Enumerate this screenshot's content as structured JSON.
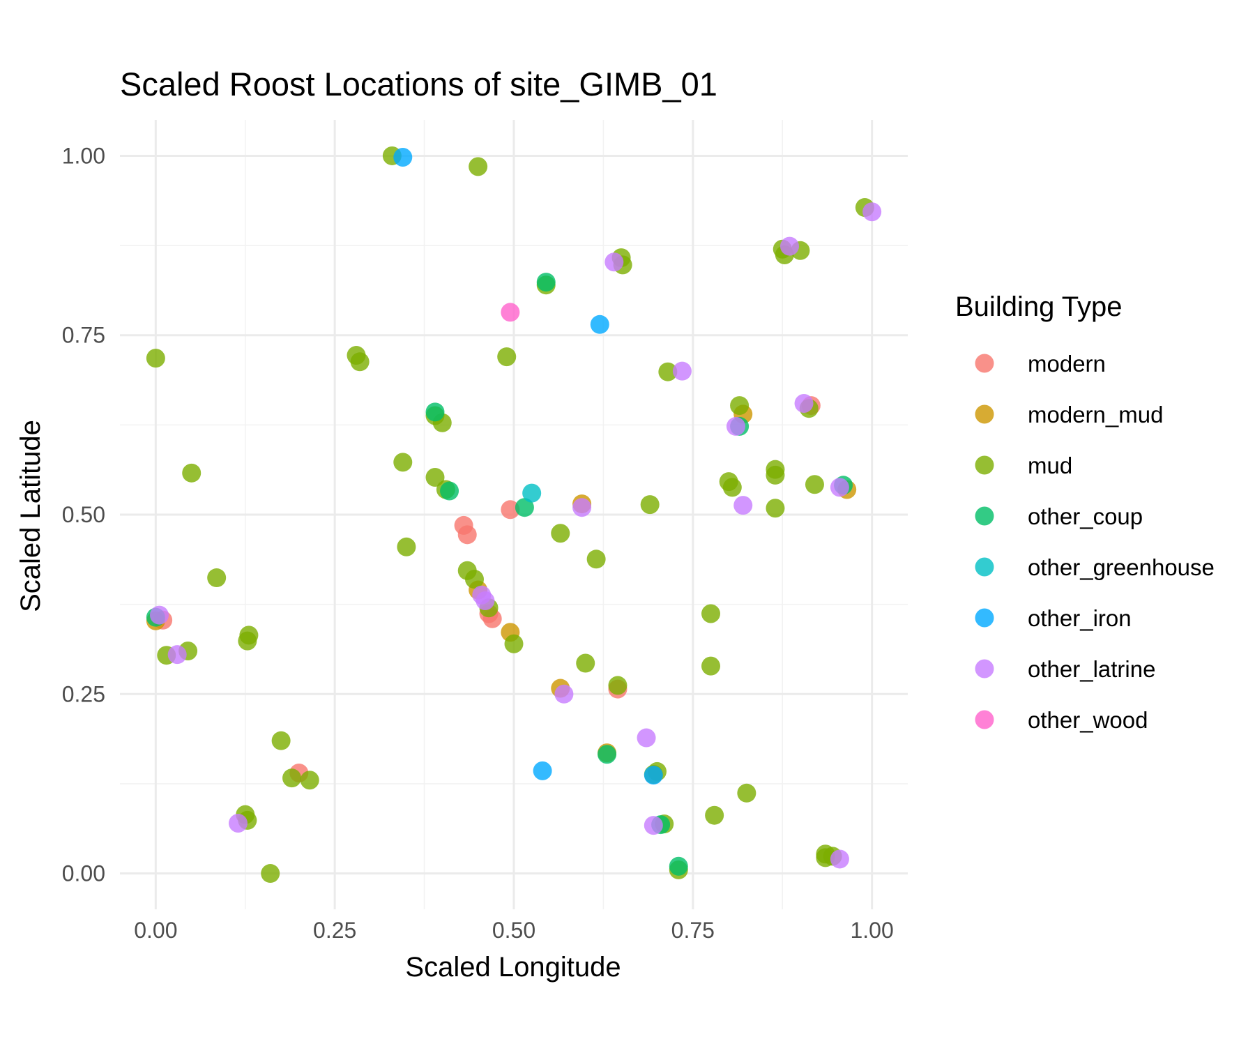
{
  "chart_data": {
    "type": "scatter",
    "title": "Scaled Roost Locations of site_GIMB_01",
    "xlabel": "Scaled Longitude",
    "ylabel": "Scaled Latitude",
    "xlim": [
      -0.05,
      1.05
    ],
    "ylim": [
      -0.05,
      1.05
    ],
    "x_ticks": [
      "0.00",
      "0.25",
      "0.50",
      "0.75",
      "1.00"
    ],
    "y_ticks": [
      "0.00",
      "0.25",
      "0.50",
      "0.75",
      "1.00"
    ],
    "grid": true,
    "legend": {
      "title": "Building Type",
      "position": "right"
    },
    "series": [
      {
        "name": "modern",
        "color": "#F8766D",
        "points": [
          [
            0.01,
            0.353
          ],
          [
            0.2,
            0.14
          ],
          [
            0.43,
            0.485
          ],
          [
            0.435,
            0.472
          ],
          [
            0.465,
            0.362
          ],
          [
            0.47,
            0.355
          ],
          [
            0.495,
            0.507
          ],
          [
            0.645,
            0.257
          ],
          [
            0.915,
            0.652
          ]
        ]
      },
      {
        "name": "modern_mud",
        "color": "#CD9600",
        "points": [
          [
            0.0,
            0.352
          ],
          [
            0.45,
            0.395
          ],
          [
            0.495,
            0.336
          ],
          [
            0.565,
            0.258
          ],
          [
            0.595,
            0.515
          ],
          [
            0.63,
            0.168
          ],
          [
            0.82,
            0.64
          ],
          [
            0.965,
            0.535
          ]
        ]
      },
      {
        "name": "mud",
        "color": "#7CAE00",
        "points": [
          [
            0.0,
            0.718
          ],
          [
            0.05,
            0.558
          ],
          [
            0.015,
            0.304
          ],
          [
            0.045,
            0.31
          ],
          [
            0.085,
            0.412
          ],
          [
            0.13,
            0.332
          ],
          [
            0.128,
            0.324
          ],
          [
            0.125,
            0.082
          ],
          [
            0.128,
            0.074
          ],
          [
            0.16,
            0.0
          ],
          [
            0.175,
            0.185
          ],
          [
            0.19,
            0.133
          ],
          [
            0.215,
            0.13
          ],
          [
            0.28,
            0.722
          ],
          [
            0.285,
            0.713
          ],
          [
            0.33,
            1.0
          ],
          [
            0.345,
            0.573
          ],
          [
            0.35,
            0.455
          ],
          [
            0.39,
            0.552
          ],
          [
            0.39,
            0.638
          ],
          [
            0.4,
            0.628
          ],
          [
            0.405,
            0.535
          ],
          [
            0.435,
            0.422
          ],
          [
            0.445,
            0.41
          ],
          [
            0.45,
            0.985
          ],
          [
            0.465,
            0.37
          ],
          [
            0.49,
            0.72
          ],
          [
            0.5,
            0.32
          ],
          [
            0.545,
            0.82
          ],
          [
            0.565,
            0.474
          ],
          [
            0.6,
            0.293
          ],
          [
            0.615,
            0.438
          ],
          [
            0.645,
            0.262
          ],
          [
            0.65,
            0.858
          ],
          [
            0.652,
            0.848
          ],
          [
            0.69,
            0.514
          ],
          [
            0.7,
            0.142
          ],
          [
            0.695,
            0.138
          ],
          [
            0.71,
            0.069
          ],
          [
            0.715,
            0.699
          ],
          [
            0.73,
            0.005
          ],
          [
            0.775,
            0.362
          ],
          [
            0.775,
            0.289
          ],
          [
            0.78,
            0.081
          ],
          [
            0.8,
            0.546
          ],
          [
            0.805,
            0.538
          ],
          [
            0.815,
            0.652
          ],
          [
            0.825,
            0.112
          ],
          [
            0.865,
            0.563
          ],
          [
            0.865,
            0.555
          ],
          [
            0.865,
            0.509
          ],
          [
            0.875,
            0.87
          ],
          [
            0.878,
            0.862
          ],
          [
            0.9,
            0.868
          ],
          [
            0.912,
            0.648
          ],
          [
            0.92,
            0.542
          ],
          [
            0.935,
            0.027
          ],
          [
            0.935,
            0.022
          ],
          [
            0.945,
            0.024
          ],
          [
            0.99,
            0.928
          ]
        ]
      },
      {
        "name": "other_coup",
        "color": "#00BE67",
        "points": [
          [
            0.0,
            0.357
          ],
          [
            0.39,
            0.643
          ],
          [
            0.41,
            0.533
          ],
          [
            0.515,
            0.51
          ],
          [
            0.545,
            0.824
          ],
          [
            0.63,
            0.166
          ],
          [
            0.705,
            0.068
          ],
          [
            0.73,
            0.01
          ],
          [
            0.815,
            0.623
          ],
          [
            0.96,
            0.541
          ]
        ]
      },
      {
        "name": "other_greenhouse",
        "color": "#00BFC4",
        "points": [
          [
            0.525,
            0.53
          ]
        ]
      },
      {
        "name": "other_iron",
        "color": "#00A9FF",
        "points": [
          [
            0.345,
            0.998
          ],
          [
            0.54,
            0.143
          ],
          [
            0.62,
            0.765
          ],
          [
            0.695,
            0.137
          ]
        ]
      },
      {
        "name": "other_latrine",
        "color": "#C77CFF",
        "points": [
          [
            0.005,
            0.36
          ],
          [
            0.03,
            0.305
          ],
          [
            0.115,
            0.07
          ],
          [
            0.455,
            0.388
          ],
          [
            0.46,
            0.38
          ],
          [
            0.57,
            0.25
          ],
          [
            0.595,
            0.51
          ],
          [
            0.64,
            0.852
          ],
          [
            0.685,
            0.189
          ],
          [
            0.695,
            0.067
          ],
          [
            0.735,
            0.7
          ],
          [
            0.81,
            0.623
          ],
          [
            0.82,
            0.513
          ],
          [
            0.885,
            0.874
          ],
          [
            0.905,
            0.655
          ],
          [
            0.955,
            0.02
          ],
          [
            0.955,
            0.538
          ],
          [
            1.0,
            0.922
          ]
        ]
      },
      {
        "name": "other_wood",
        "color": "#FF61CC",
        "points": [
          [
            0.495,
            0.782
          ]
        ]
      }
    ]
  }
}
